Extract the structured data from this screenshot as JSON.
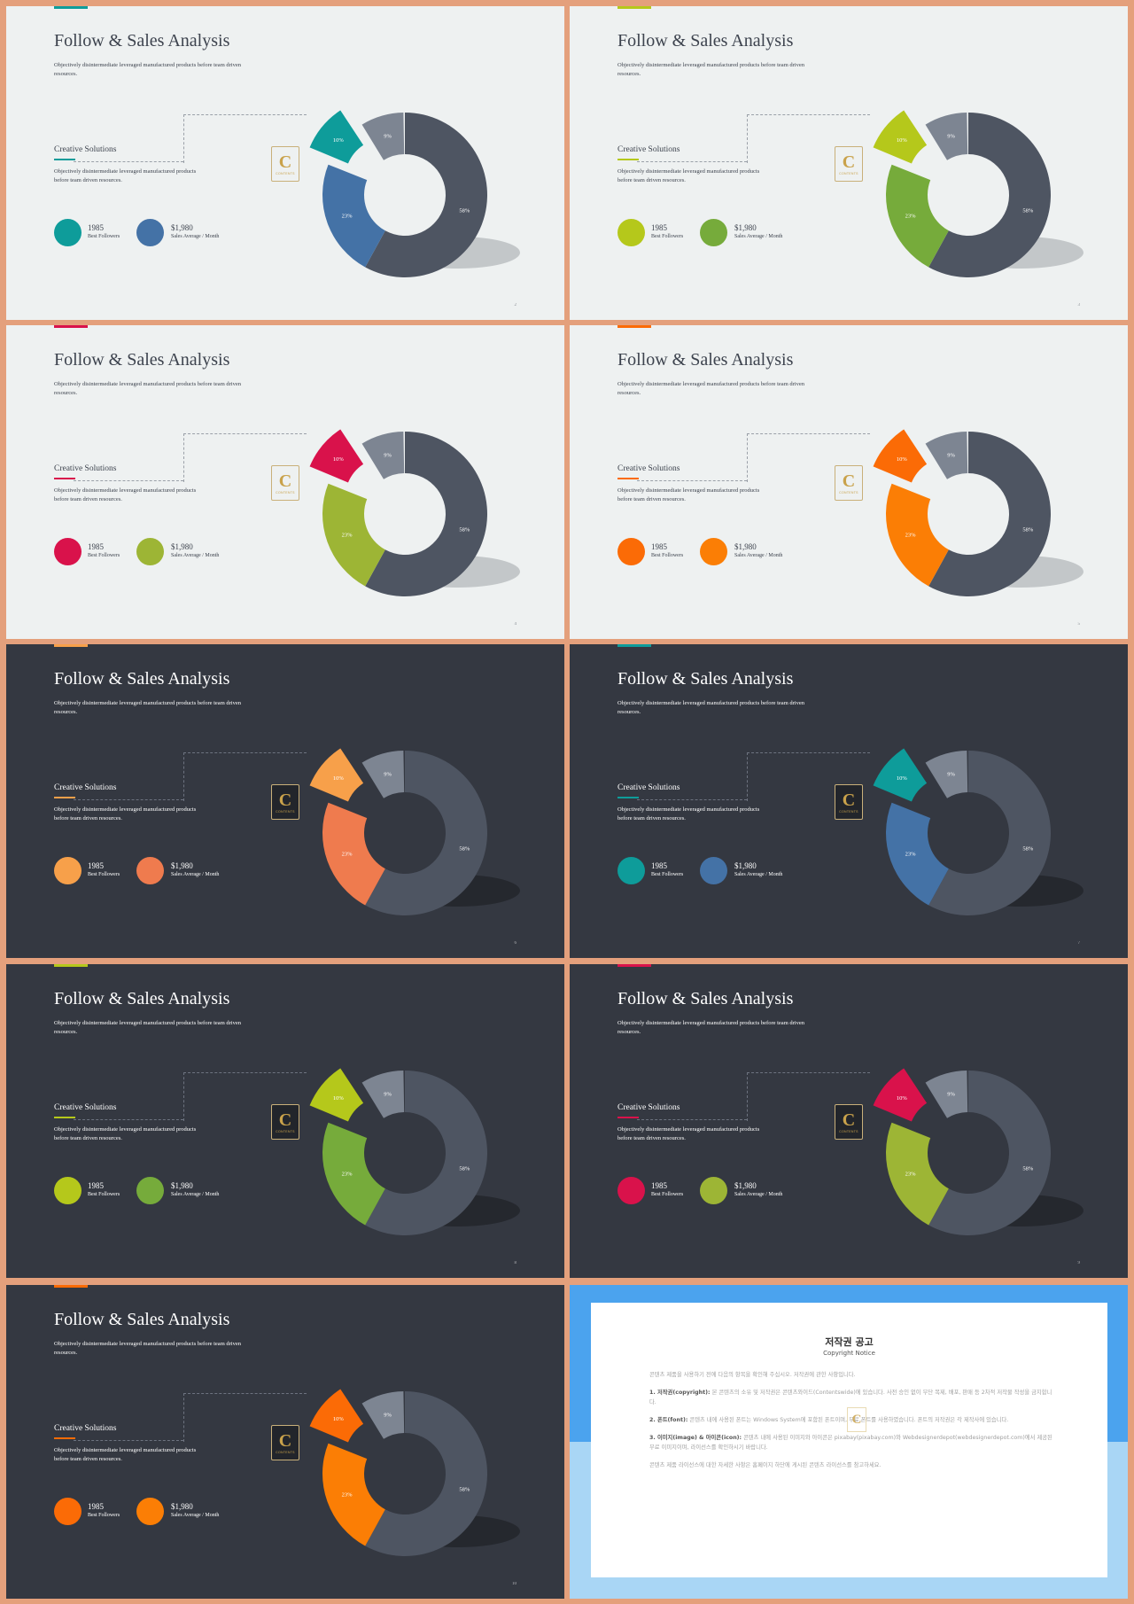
{
  "slide_common": {
    "title": "Follow & Sales Analysis",
    "subtitle": "Objectively disintermediate leveraged manufactured products before team driven resources.",
    "section_title": "Creative Solutions",
    "section_desc": "Objectively disintermediate leveraged manufactured products before team driven resources.",
    "stat1_value": "1985",
    "stat1_label": "Best Followers",
    "stat2_value": "$1,980",
    "stat2_label": "Sales Average / Month",
    "logo_letter": "C",
    "logo_text": "CONTENTS",
    "labels": {
      "small": "10%",
      "gray": "9%",
      "mid": "23%",
      "big": "58%"
    }
  },
  "chart_data": [
    {
      "type": "pie",
      "series": [
        {
          "values": [
            10,
            9,
            23,
            58
          ]
        }
      ],
      "categories": [
        "10%",
        "9%",
        "23%",
        "58%"
      ],
      "theme": "light",
      "colors": {
        "small": "#0e9c9a",
        "mid": "#4472a6",
        "gray": "#7d8592",
        "big": "#4e5562"
      },
      "page": "2"
    },
    {
      "type": "pie",
      "series": [
        {
          "values": [
            10,
            9,
            23,
            58
          ]
        }
      ],
      "categories": [
        "10%",
        "9%",
        "23%",
        "58%"
      ],
      "theme": "light",
      "colors": {
        "small": "#b5c81b",
        "mid": "#76ab3b",
        "gray": "#7d8592",
        "big": "#4e5562"
      },
      "page": "3"
    },
    {
      "type": "pie",
      "series": [
        {
          "values": [
            10,
            9,
            23,
            58
          ]
        }
      ],
      "categories": [
        "10%",
        "9%",
        "23%",
        "58%"
      ],
      "theme": "light",
      "colors": {
        "small": "#d9124b",
        "mid": "#9db535",
        "gray": "#7d8592",
        "big": "#4e5562"
      },
      "page": "4"
    },
    {
      "type": "pie",
      "series": [
        {
          "values": [
            10,
            9,
            23,
            58
          ]
        }
      ],
      "categories": [
        "10%",
        "9%",
        "23%",
        "58%"
      ],
      "theme": "light",
      "colors": {
        "small": "#fb6b06",
        "mid": "#fb7e05",
        "gray": "#7d8592",
        "big": "#4e5562"
      },
      "page": "5"
    },
    {
      "type": "pie",
      "series": [
        {
          "values": [
            10,
            9,
            23,
            58
          ]
        }
      ],
      "categories": [
        "10%",
        "9%",
        "23%",
        "58%"
      ],
      "theme": "dark",
      "colors": {
        "small": "#f7a04a",
        "mid": "#ef7b4e",
        "gray": "#7d8592",
        "big": "#4e5562"
      },
      "page": "6"
    },
    {
      "type": "pie",
      "series": [
        {
          "values": [
            10,
            9,
            23,
            58
          ]
        }
      ],
      "categories": [
        "10%",
        "9%",
        "23%",
        "58%"
      ],
      "theme": "dark",
      "colors": {
        "small": "#0e9c9a",
        "mid": "#4472a6",
        "gray": "#7d8592",
        "big": "#4e5562"
      },
      "page": "7"
    },
    {
      "type": "pie",
      "series": [
        {
          "values": [
            10,
            9,
            23,
            58
          ]
        }
      ],
      "categories": [
        "10%",
        "9%",
        "23%",
        "58%"
      ],
      "theme": "dark",
      "colors": {
        "small": "#b5c81b",
        "mid": "#76ab3b",
        "gray": "#7d8592",
        "big": "#4e5562"
      },
      "page": "8"
    },
    {
      "type": "pie",
      "series": [
        {
          "values": [
            10,
            9,
            23,
            58
          ]
        }
      ],
      "categories": [
        "10%",
        "9%",
        "23%",
        "58%"
      ],
      "theme": "dark",
      "colors": {
        "small": "#d9124b",
        "mid": "#9db535",
        "gray": "#7d8592",
        "big": "#4e5562"
      },
      "page": "9"
    },
    {
      "type": "pie",
      "series": [
        {
          "values": [
            10,
            9,
            23,
            58
          ]
        }
      ],
      "categories": [
        "10%",
        "9%",
        "23%",
        "58%"
      ],
      "theme": "dark",
      "colors": {
        "small": "#fb6b06",
        "mid": "#fb7e05",
        "gray": "#7d8592",
        "big": "#4e5562"
      },
      "page": "10"
    }
  ],
  "notice": {
    "title": "저작권 공고",
    "subtitle": "Copyright Notice",
    "intro": "콘텐츠 제품을 사용하기 전에 다음의 항목을 확인해 주십시오. 저작권에 관한 사항입니다.",
    "item1_label": "1. 저작권(copyright):",
    "item1_text": "본 콘텐츠의 소유 및 저작권은 콘텐츠와이드(Contentswide)에 있습니다. 사전 승인 없이 무단 복제, 배포, 판매 등 2차적 저작물 작성을 금지합니다.",
    "item2_label": "2. 폰트(font):",
    "item2_text": "콘텐츠 내에 사용된 폰트는 Windows System에 포함된 폰트이며, 무료 폰트를 사용하였습니다. 폰트의 저작권은 각 제작사에 있습니다.",
    "item3_label": "3. 이미지(image) & 아이콘(icon):",
    "item3_text": "콘텐츠 내에 사용된 이미지와 아이콘은 pixabay(pixabay.com)와 Webdesignerdepot(webdesignerdepot.com)에서 제공된 무료 이미지이며, 라이선스를 확인하시기 바랍니다.",
    "outro": "콘텐츠 제품 라이선스에 대한 자세한 사항은 홈페이지 하단에 게시된 콘텐츠 라이선스를 참고하세요.",
    "logo_letter": "C"
  }
}
